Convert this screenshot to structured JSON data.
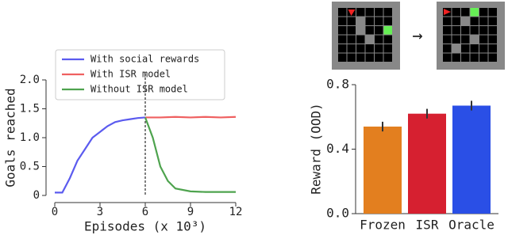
{
  "chart_data": [
    {
      "type": "line",
      "xlabel": "Episodes (x 10³)",
      "ylabel": "Goals reached",
      "xlim": [
        0,
        12
      ],
      "xticks": [
        0,
        3,
        6,
        9,
        12
      ],
      "ylim": [
        0,
        2.0
      ],
      "yticks": [
        0,
        0.5,
        {
          "value": 1.0,
          "label": "1.0"
        },
        1.5,
        {
          "value": 2.0,
          "label": "2.0"
        }
      ],
      "vline": 6,
      "series": [
        {
          "name": "With social rewards",
          "color": "#5b5bef",
          "x": [
            0,
            0.5,
            1,
            1.5,
            2,
            2.5,
            3,
            3.5,
            4,
            4.5,
            5,
            5.5,
            6
          ],
          "values": [
            0.05,
            0.05,
            0.3,
            0.6,
            0.8,
            1.0,
            1.1,
            1.2,
            1.27,
            1.3,
            1.32,
            1.34,
            1.35
          ]
        },
        {
          "name": "With ISR model",
          "color": "#ef6060",
          "x": [
            6,
            7,
            8,
            9,
            10,
            11,
            12
          ],
          "values": [
            1.35,
            1.35,
            1.36,
            1.35,
            1.36,
            1.35,
            1.36
          ]
        },
        {
          "name": "Without ISR model",
          "color": "#4ea34e",
          "x": [
            6,
            6.5,
            7,
            7.5,
            8,
            9,
            10,
            11,
            12
          ],
          "values": [
            1.35,
            1.0,
            0.5,
            0.25,
            0.12,
            0.07,
            0.06,
            0.06,
            0.06
          ]
        }
      ]
    },
    {
      "type": "bar",
      "ylabel": "Reward (OOD)",
      "categories": [
        "Frozen",
        "ISR",
        "Oracle"
      ],
      "values": [
        0.54,
        0.62,
        0.67
      ],
      "errors": [
        0.03,
        0.03,
        0.03
      ],
      "colors": [
        "#e37f1f",
        "#d62030",
        "#2a4fe6"
      ],
      "ylim": [
        0,
        0.8
      ],
      "yticks": [
        {
          "value": 0.0,
          "label": "0.0"
        },
        0.4,
        0.8
      ]
    }
  ]
}
